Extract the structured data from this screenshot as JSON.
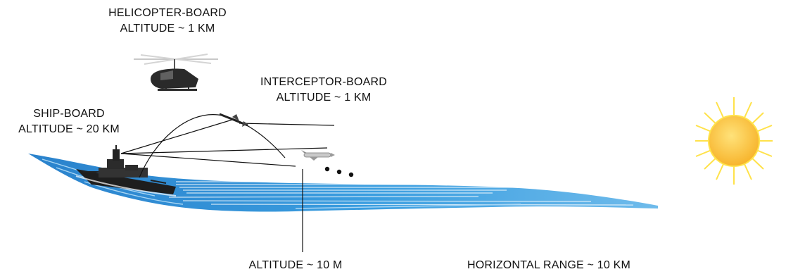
{
  "labels": {
    "helicopter": {
      "line1": "HELICOPTER-BOARD",
      "line2": "ALTITUDE ~ 1 KM"
    },
    "interceptor": {
      "line1": "INTERCEPTOR-BOARD",
      "line2": "ALTITUDE ~ 1 KM"
    },
    "ship": {
      "line1": "SHIP-BOARD",
      "line2": "ALTITUDE ~ 20 KM"
    },
    "target_altitude": "ALTITUDE ~ 10 M",
    "horizontal_range": "HORIZONTAL RANGE ~ 10 KM"
  },
  "colors": {
    "sea_dark": "#2f8fd6",
    "sea_light": "#9fd0f2",
    "sun_fill": "#ffc64a",
    "sun_rays": "#ffe24a",
    "lines": "#111111"
  },
  "icons": [
    "helicopter-icon",
    "ship-icon",
    "interceptor-missile-icon",
    "cruise-missile-icon",
    "sun-icon"
  ]
}
